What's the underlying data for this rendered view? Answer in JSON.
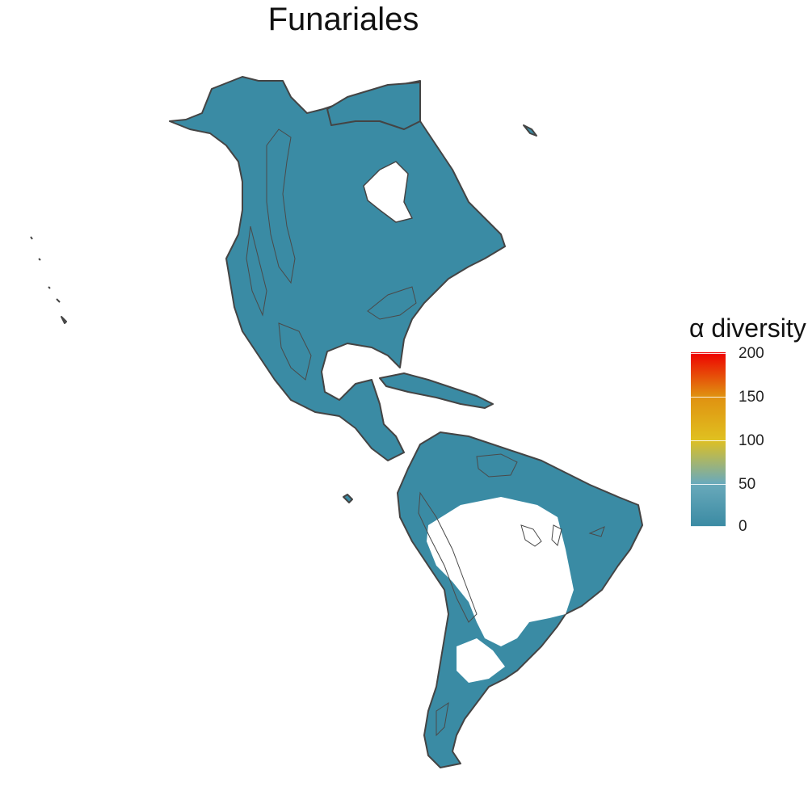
{
  "title": "Funariales",
  "legend": {
    "title": "α diversity",
    "ticks": [
      "200",
      "150",
      "100",
      "50",
      "0"
    ],
    "colors": {
      "low": "#3a8aa3",
      "mid_low": "#6aaabb",
      "mid": "#e0c020",
      "mid_high": "#e09010",
      "high": "#ee0000"
    }
  },
  "map": {
    "fill_color": "#3a8ba4",
    "outline_color": "#444444"
  }
}
